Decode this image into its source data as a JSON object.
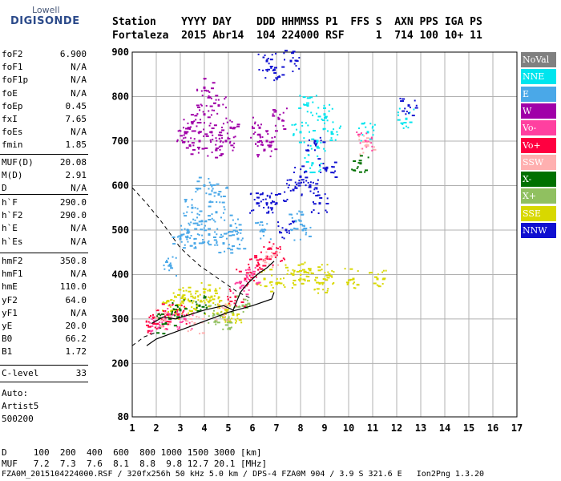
{
  "logo": {
    "line1": "Lowell",
    "line2": "DIGISONDE"
  },
  "header": {
    "line1": "Station    YYYY DAY    DDD HHMMSS P1  FFS S  AXN PPS IGA PS",
    "line2": "Fortaleza  2015 Abr14  104 224000 RSF     1  714 100 10+ 11"
  },
  "params": {
    "group1": [
      {
        "k": "foF2",
        "v": "6.900"
      },
      {
        "k": "foF1",
        "v": "N/A"
      },
      {
        "k": "foF1p",
        "v": "N/A"
      },
      {
        "k": "foE",
        "v": "N/A"
      },
      {
        "k": "foEp",
        "v": "0.45"
      },
      {
        "k": "fxI",
        "v": "7.65"
      },
      {
        "k": "foEs",
        "v": "N/A"
      },
      {
        "k": "fmin",
        "v": "1.85"
      }
    ],
    "group2": [
      {
        "k": "MUF(D)",
        "v": "20.08"
      },
      {
        "k": "M(D)",
        "v": "2.91"
      },
      {
        "k": "D",
        "v": "N/A"
      }
    ],
    "group3": [
      {
        "k": "h`F",
        "v": "290.0"
      },
      {
        "k": "h`F2",
        "v": "290.0"
      },
      {
        "k": "h`E",
        "v": "N/A"
      },
      {
        "k": "h`Es",
        "v": "N/A"
      }
    ],
    "group4": [
      {
        "k": "hmF2",
        "v": "350.8"
      },
      {
        "k": "hmF1",
        "v": "N/A"
      },
      {
        "k": "hmE",
        "v": "110.0"
      },
      {
        "k": "yF2",
        "v": "64.0"
      },
      {
        "k": "yF1",
        "v": "N/A"
      },
      {
        "k": "yE",
        "v": "20.0"
      },
      {
        "k": "B0",
        "v": "66.2"
      },
      {
        "k": "B1",
        "v": "1.72"
      }
    ],
    "group5": [
      {
        "k": "C-level",
        "v": "33"
      }
    ]
  },
  "auto": {
    "line1": "Auto:",
    "line2": "Artist5",
    "line3": "500200"
  },
  "legend": [
    {
      "label": "NoVal",
      "color": "#808080"
    },
    {
      "label": "NNE",
      "color": "#00e5ee"
    },
    {
      "label": "E",
      "color": "#4aa8e8"
    },
    {
      "label": "W",
      "color": "#a000a8"
    },
    {
      "label": "Vo-",
      "color": "#ff40a0"
    },
    {
      "label": "Vo+",
      "color": "#ff0040"
    },
    {
      "label": "SSW",
      "color": "#ffb0b0"
    },
    {
      "label": "X-",
      "color": "#007000"
    },
    {
      "label": "X+",
      "color": "#90c060"
    },
    {
      "label": "SSE",
      "color": "#d8d800"
    },
    {
      "label": "NNW",
      "color": "#1010d0"
    }
  ],
  "footer": {
    "line1": "D     100  200  400  600  800 1000 1500 3000 [km]",
    "line2": "MUF   7.2  7.3  7.6  8.1  8.8  9.8 12.7 20.1 [MHz]",
    "line3": "FZA0M_2015104224000.RSF / 320fx256h 50 kHz 5.0 km / DPS-4 FZA0M 904 / 3.9 S 321.6 E   Ion2Png 1.3.20"
  },
  "chart_data": {
    "type": "scatter",
    "title": "",
    "xlabel": "",
    "ylabel": "",
    "xlim": [
      1,
      17
    ],
    "ylim": [
      80,
      900
    ],
    "x_ticks": [
      1,
      2,
      3,
      4,
      5,
      6,
      7,
      8,
      9,
      10,
      11,
      12,
      13,
      14,
      15,
      16,
      17
    ],
    "y_ticks": [
      80,
      200,
      300,
      400,
      500,
      600,
      700,
      800,
      900
    ],
    "grid": true,
    "series": [
      {
        "name": "W",
        "color": "#a000a8",
        "points": [
          [
            3.2,
            720
          ],
          [
            3.5,
            740
          ],
          [
            3.8,
            700
          ],
          [
            4.0,
            760
          ],
          [
            4.3,
            720
          ],
          [
            4.6,
            780
          ],
          [
            4.9,
            700
          ],
          [
            5.1,
            730
          ],
          [
            3.4,
            690
          ],
          [
            4.5,
            680
          ],
          [
            6.3,
            730
          ],
          [
            6.6,
            700
          ],
          [
            7.1,
            750
          ],
          [
            4.0,
            820
          ],
          [
            6.5,
            680
          ]
        ]
      },
      {
        "name": "E",
        "color": "#4aa8e8",
        "points": [
          [
            3.0,
            480
          ],
          [
            3.3,
            500
          ],
          [
            3.6,
            470
          ],
          [
            3.9,
            520
          ],
          [
            4.2,
            490
          ],
          [
            4.5,
            540
          ],
          [
            4.8,
            470
          ],
          [
            5.1,
            510
          ],
          [
            5.4,
            480
          ],
          [
            3.5,
            550
          ],
          [
            4.0,
            600
          ],
          [
            4.6,
            580
          ],
          [
            7.8,
            520
          ],
          [
            8.1,
            500
          ],
          [
            2.6,
            420
          ],
          [
            6.4,
            500
          ]
        ]
      },
      {
        "name": "NNE",
        "color": "#00e5ee",
        "points": [
          [
            8.0,
            720
          ],
          [
            8.3,
            780
          ],
          [
            8.7,
            700
          ],
          [
            9.0,
            760
          ],
          [
            9.3,
            720
          ],
          [
            8.5,
            650
          ],
          [
            10.8,
            720
          ],
          [
            12.4,
            750
          ]
        ]
      },
      {
        "name": "NNW",
        "color": "#1010d0",
        "points": [
          [
            6.2,
            560
          ],
          [
            6.6,
            560
          ],
          [
            7.0,
            560
          ],
          [
            7.7,
            590
          ],
          [
            8.0,
            620
          ],
          [
            8.4,
            600
          ],
          [
            8.8,
            560
          ],
          [
            7.6,
            880
          ],
          [
            6.9,
            860
          ],
          [
            6.6,
            880
          ],
          [
            7.4,
            500
          ],
          [
            8.6,
            700
          ],
          [
            9.1,
            640
          ],
          [
            12.5,
            780
          ]
        ]
      },
      {
        "name": "SSE",
        "color": "#d8d800",
        "points": [
          [
            2.5,
            340
          ],
          [
            2.8,
            320
          ],
          [
            3.1,
            350
          ],
          [
            3.4,
            340
          ],
          [
            3.7,
            330
          ],
          [
            4.0,
            360
          ],
          [
            4.3,
            350
          ],
          [
            4.6,
            330
          ],
          [
            4.9,
            320
          ],
          [
            5.2,
            310
          ],
          [
            6.5,
            390
          ],
          [
            7.0,
            380
          ],
          [
            7.7,
            400
          ],
          [
            8.0,
            390
          ],
          [
            8.4,
            410
          ],
          [
            8.8,
            380
          ],
          [
            9.2,
            400
          ],
          [
            10.2,
            390
          ],
          [
            11.2,
            390
          ]
        ]
      },
      {
        "name": "Vo+",
        "color": "#ff0040",
        "points": [
          [
            1.9,
            290
          ],
          [
            2.2,
            300
          ],
          [
            2.5,
            310
          ],
          [
            2.9,
            310
          ],
          [
            5.3,
            350
          ],
          [
            5.7,
            390
          ],
          [
            6.2,
            420
          ],
          [
            6.6,
            440
          ],
          [
            7.0,
            450
          ]
        ]
      },
      {
        "name": "Vo-",
        "color": "#ff40a0",
        "points": [
          [
            2.1,
            280
          ],
          [
            2.6,
            300
          ],
          [
            3.2,
            300
          ],
          [
            5.5,
            370
          ],
          [
            6.0,
            400
          ],
          [
            10.7,
            700
          ]
        ]
      },
      {
        "name": "X-",
        "color": "#007000",
        "points": [
          [
            2.4,
            290
          ],
          [
            3.0,
            320
          ],
          [
            3.8,
            330
          ],
          [
            10.5,
            650
          ]
        ]
      },
      {
        "name": "X+",
        "color": "#90c060",
        "points": [
          [
            4.4,
            310
          ],
          [
            5.0,
            300
          ],
          [
            5.6,
            330
          ]
        ]
      },
      {
        "name": "SSW",
        "color": "#ffb0b0",
        "points": [
          [
            2.3,
            300
          ],
          [
            3.6,
            290
          ],
          [
            4.8,
            310
          ],
          [
            6.8,
            440
          ],
          [
            10.8,
            690
          ]
        ]
      }
    ],
    "profile_curve": [
      [
        1.6,
        240
      ],
      [
        2,
        255
      ],
      [
        3,
        275
      ],
      [
        4,
        295
      ],
      [
        5,
        315
      ],
      [
        6,
        330
      ],
      [
        6.8,
        345
      ],
      [
        6.9,
        360
      ]
    ],
    "trace_curve": [
      [
        1.8,
        290
      ],
      [
        2.3,
        305
      ],
      [
        2.8,
        300
      ],
      [
        3.4,
        310
      ],
      [
        4,
        320
      ],
      [
        4.8,
        330
      ],
      [
        5.2,
        320
      ],
      [
        5.5,
        360
      ],
      [
        5.8,
        380
      ],
      [
        6.2,
        400
      ],
      [
        6.6,
        415
      ],
      [
        6.9,
        430
      ]
    ],
    "dashed_curve_left": [
      [
        1.0,
        595
      ],
      [
        1.6,
        560
      ],
      [
        2.2,
        520
      ],
      [
        3.0,
        460
      ],
      [
        3.8,
        420
      ],
      [
        4.6,
        390
      ],
      [
        5.4,
        360
      ],
      [
        6.0,
        345
      ]
    ],
    "dashed_curve_bottom": [
      [
        1.0,
        240
      ],
      [
        1.5,
        260
      ],
      [
        2.0,
        270
      ]
    ]
  }
}
